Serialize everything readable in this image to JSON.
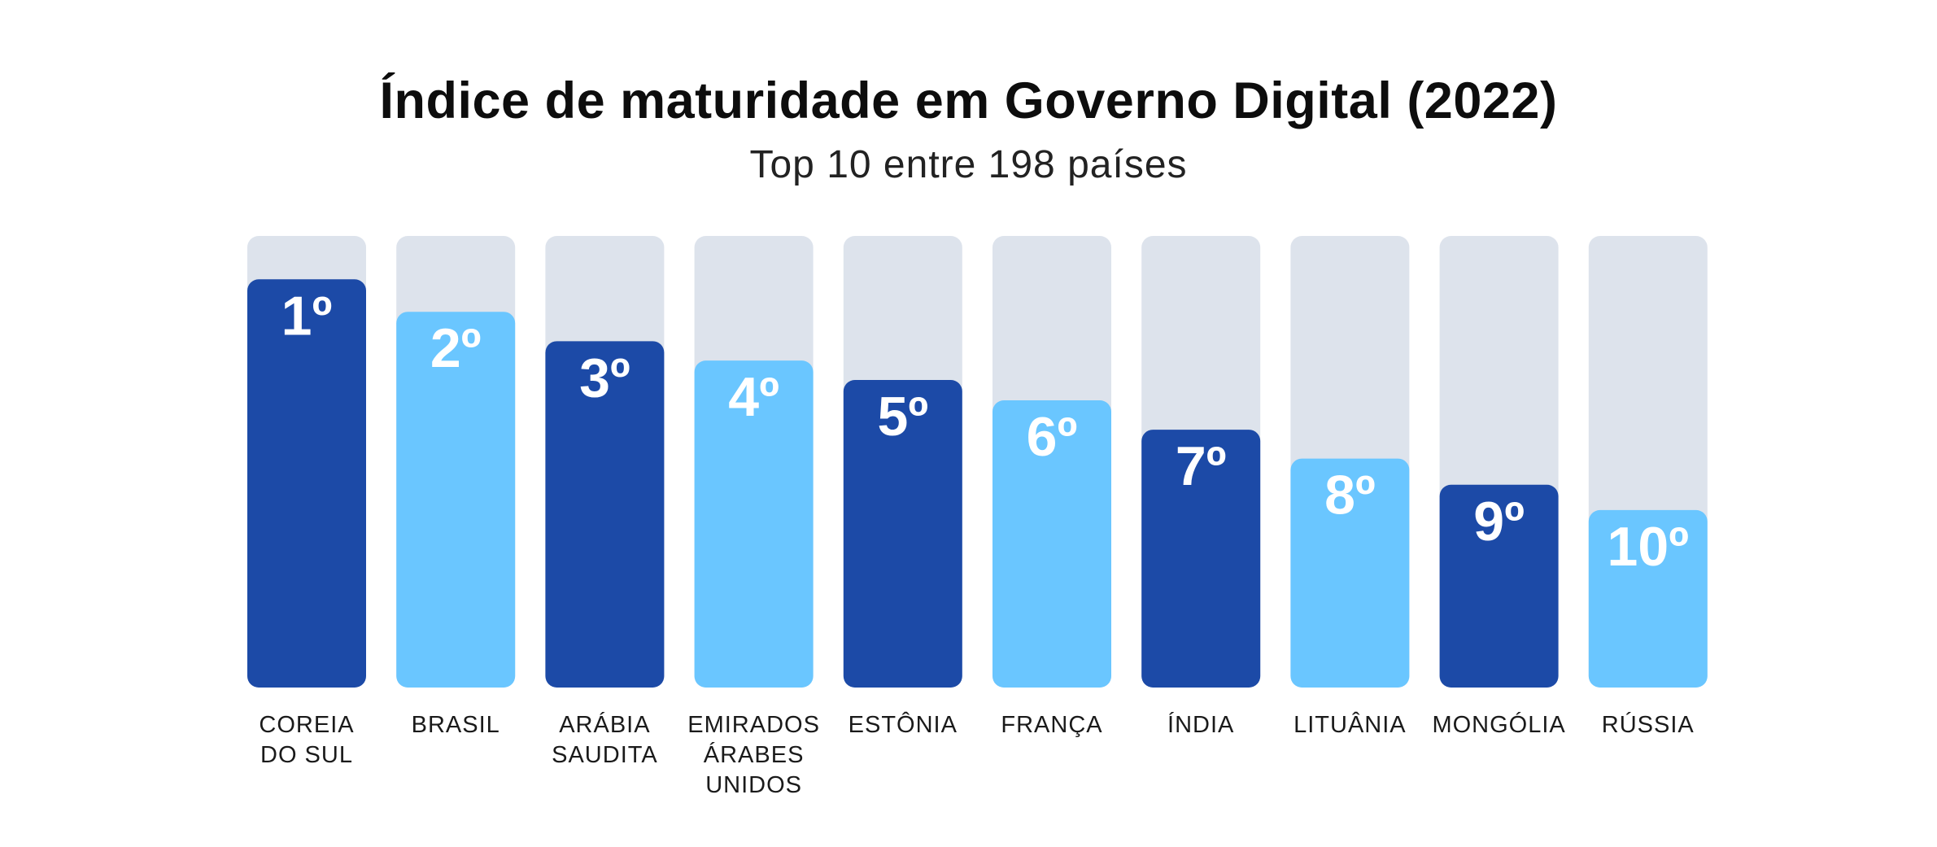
{
  "title": "Índice de maturidade em Governo Digital (2022)",
  "subtitle": "Top 10 entre 198 países",
  "colors": {
    "dark_bar": "#1c4aa7",
    "light_bar": "#6ac6ff",
    "track": "#dde3ec",
    "label_text": "#ffffff"
  },
  "chart_data": {
    "type": "bar",
    "title": "Índice de maturidade em Governo Digital (2022)",
    "subtitle": "Top 10 entre 198 países",
    "categories": [
      [
        "COREIA",
        "DO SUL"
      ],
      [
        "BRASIL"
      ],
      [
        "ARÁBIA",
        "SAUDITA"
      ],
      [
        "EMIRADOS",
        "ÁRABES",
        "UNIDOS"
      ],
      [
        "ESTÔNIA"
      ],
      [
        "FRANÇA"
      ],
      [
        "ÍNDIA"
      ],
      [
        "LITUÂNIA"
      ],
      [
        "MONGÓLIA"
      ],
      [
        "RÚSSIA"
      ]
    ],
    "data_labels": [
      "1º",
      "2º",
      "3º",
      "4º",
      "5º",
      "6º",
      "7º",
      "8º",
      "9º",
      "10º"
    ],
    "values": [
      0.904,
      0.832,
      0.767,
      0.724,
      0.681,
      0.636,
      0.571,
      0.507,
      0.449,
      0.393
    ],
    "bar_colors": [
      "dark",
      "light",
      "dark",
      "light",
      "dark",
      "light",
      "dark",
      "light",
      "dark",
      "light"
    ],
    "ylim": [
      0,
      1
    ],
    "grid": false,
    "legend": "none"
  }
}
